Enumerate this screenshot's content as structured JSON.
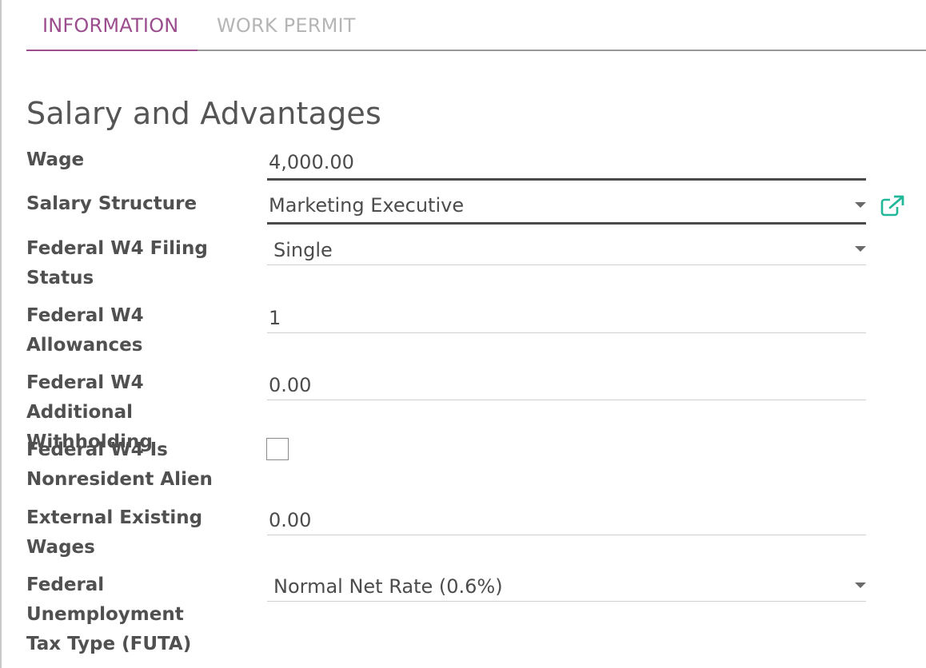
{
  "tabs": [
    {
      "label": "INFORMATION"
    },
    {
      "label": "WORK PERMIT"
    }
  ],
  "section": {
    "title": "Salary and Advantages"
  },
  "fields": {
    "wage": {
      "label": "Wage",
      "value": "4,000.00"
    },
    "salary_structure": {
      "label": "Salary Structure",
      "value": "Marketing Executive"
    },
    "filing_status": {
      "label": "Federal W4 Filing Status",
      "value": "Single"
    },
    "allowances": {
      "label": "Federal W4 Allowances",
      "value": "1"
    },
    "additional_withholding": {
      "label": "Federal W4 Additional Withholding",
      "value": "0.00"
    },
    "nonresident_alien": {
      "label": "Federal W4 Is Nonresident Alien",
      "checked": false
    },
    "external_wages": {
      "label": "External Existing Wages",
      "value": "0.00"
    },
    "futa_type": {
      "label": "Federal Unemployment Tax Type (FUTA)",
      "value": "Normal Net Rate (0.6%)"
    }
  },
  "icons": {
    "external_link": "external-link-icon",
    "dropdown": "caret-down-icon"
  },
  "colors": {
    "active_tab": "#9b4d8e",
    "inactive_tab": "#b5b5b5",
    "link_icon": "#21b799"
  }
}
